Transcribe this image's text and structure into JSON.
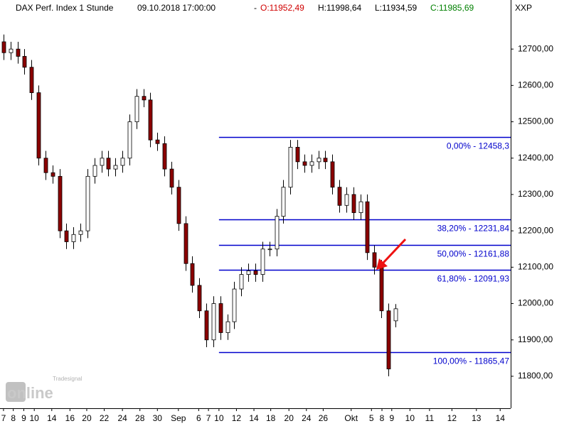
{
  "chart_data": {
    "type": "candlestick",
    "title": "DAX Perf. Index 1 Stunde",
    "timestamp": "09.10.2018 17:00:00",
    "quote": {
      "open": "O:11952,49",
      "high": "H:11998,64",
      "low": "L:11934,59",
      "close": "C:11985,69"
    },
    "symbol": "XXP",
    "watermark": {
      "brand": "Tradesignal",
      "name": "online"
    },
    "up_color": "#ffffff",
    "down_color": "#8b0000",
    "open": [
      12720,
      12690,
      12700,
      12680,
      12650,
      12580,
      12400,
      12360,
      12350,
      12200,
      12170,
      12190,
      12200,
      12350,
      12380,
      12400,
      12370,
      12380,
      12400,
      12500,
      12570,
      12560,
      12450,
      12440,
      12370,
      12320,
      12220,
      12110,
      12050,
      11980,
      11900,
      12000,
      11920,
      11950,
      12040,
      12080,
      12090,
      12080,
      12150,
      12150,
      12240,
      12320,
      12430,
      12390,
      12380,
      12390,
      12400,
      12390,
      12320,
      12270,
      12300,
      12250,
      12280,
      12140,
      12100,
      11980,
      11952.49
    ],
    "high": [
      12740,
      12720,
      12720,
      12700,
      12670,
      12600,
      12420,
      12380,
      12370,
      12220,
      12210,
      12220,
      12370,
      12400,
      12420,
      12420,
      12400,
      12420,
      12520,
      12590,
      12590,
      12580,
      12470,
      12460,
      12390,
      12340,
      12240,
      12130,
      12070,
      12000,
      12020,
      12020,
      11970,
      12060,
      12100,
      12110,
      12110,
      12170,
      12170,
      12260,
      12340,
      12450,
      12450,
      12410,
      12410,
      12420,
      12420,
      12410,
      12340,
      12320,
      12320,
      12300,
      12300,
      12160,
      12120,
      12000,
      11998.64
    ],
    "low": [
      12670,
      12670,
      12660,
      12630,
      12560,
      12380,
      12340,
      12330,
      12180,
      12150,
      12150,
      12170,
      12180,
      12330,
      12360,
      12350,
      12350,
      12360,
      12380,
      12480,
      12540,
      12430,
      12420,
      12350,
      12300,
      12200,
      12090,
      12030,
      11960,
      11880,
      11880,
      11900,
      11900,
      11930,
      12020,
      12060,
      12060,
      12060,
      12130,
      12130,
      12220,
      12300,
      12370,
      12360,
      12360,
      12370,
      12370,
      12300,
      12250,
      12250,
      12230,
      12230,
      12120,
      12080,
      11960,
      11800,
      11934.59
    ],
    "close": [
      12690,
      12700,
      12680,
      12650,
      12580,
      12400,
      12360,
      12350,
      12200,
      12170,
      12190,
      12200,
      12350,
      12380,
      12400,
      12370,
      12380,
      12400,
      12500,
      12570,
      12560,
      12450,
      12440,
      12370,
      12320,
      12220,
      12110,
      12050,
      11980,
      11900,
      12000,
      11920,
      11950,
      12040,
      12080,
      12090,
      12080,
      12150,
      12150,
      12240,
      12320,
      12430,
      12390,
      12380,
      12390,
      12400,
      12390,
      12320,
      12270,
      12300,
      12250,
      12280,
      12140,
      12100,
      11980,
      11820,
      11985.69
    ],
    "xlim": [
      0,
      73
    ],
    "xticks": [
      {
        "value": 0,
        "label": "7"
      },
      {
        "value": 1.4,
        "label": "8"
      },
      {
        "value": 2.9,
        "label": "9"
      },
      {
        "value": 4.4,
        "label": "10"
      },
      {
        "value": 6.9,
        "label": "14"
      },
      {
        "value": 9.5,
        "label": "16"
      },
      {
        "value": 11.9,
        "label": "20"
      },
      {
        "value": 14.4,
        "label": "22"
      },
      {
        "value": 17,
        "label": "24"
      },
      {
        "value": 19.5,
        "label": "28"
      },
      {
        "value": 22,
        "label": "30"
      },
      {
        "value": 25,
        "label": "Sep"
      },
      {
        "value": 27.9,
        "label": "6"
      },
      {
        "value": 29.3,
        "label": "7"
      },
      {
        "value": 30.8,
        "label": "10"
      },
      {
        "value": 33.3,
        "label": "12"
      },
      {
        "value": 35.8,
        "label": "14"
      },
      {
        "value": 38.2,
        "label": "18"
      },
      {
        "value": 40.8,
        "label": "20"
      },
      {
        "value": 43.3,
        "label": "24"
      },
      {
        "value": 45.7,
        "label": "26"
      },
      {
        "value": 49.7,
        "label": "Okt"
      },
      {
        "value": 52.6,
        "label": "5"
      },
      {
        "value": 54.1,
        "label": "8"
      },
      {
        "value": 55.5,
        "label": "9"
      },
      {
        "value": 58.1,
        "label": "10"
      },
      {
        "value": 60.9,
        "label": "11"
      },
      {
        "value": 64.1,
        "label": "12"
      },
      {
        "value": 67.6,
        "label": "13"
      },
      {
        "value": 71,
        "label": "14"
      }
    ],
    "ylim": [
      11712,
      12835
    ],
    "yticks": [
      {
        "value": 11800,
        "label": "11800,00"
      },
      {
        "value": 11900,
        "label": "11900,00"
      },
      {
        "value": 12000,
        "label": "12000,00"
      },
      {
        "value": 12100,
        "label": "12100,00"
      },
      {
        "value": 12200,
        "label": "12200,00"
      },
      {
        "value": 12300,
        "label": "12300,00"
      },
      {
        "value": 12400,
        "label": "12400,00"
      },
      {
        "value": 12500,
        "label": "12500,00"
      },
      {
        "value": 12600,
        "label": "12600,00"
      },
      {
        "value": 12700,
        "label": "12700,00"
      }
    ],
    "fibonacci": {
      "color": "#0000cc",
      "start": 31.3,
      "levels": [
        {
          "value": 12458.3,
          "label": "0,00% - 12458,3"
        },
        {
          "value": 12231.84,
          "label": "38,20% - 12231,84"
        },
        {
          "value": 12161.88,
          "label": "50,00% - 12161,88"
        },
        {
          "value": 12091.93,
          "label": "61,80% - 12091,93"
        },
        {
          "value": 11865.47,
          "label": "100,00% - 11865,47"
        }
      ]
    }
  }
}
